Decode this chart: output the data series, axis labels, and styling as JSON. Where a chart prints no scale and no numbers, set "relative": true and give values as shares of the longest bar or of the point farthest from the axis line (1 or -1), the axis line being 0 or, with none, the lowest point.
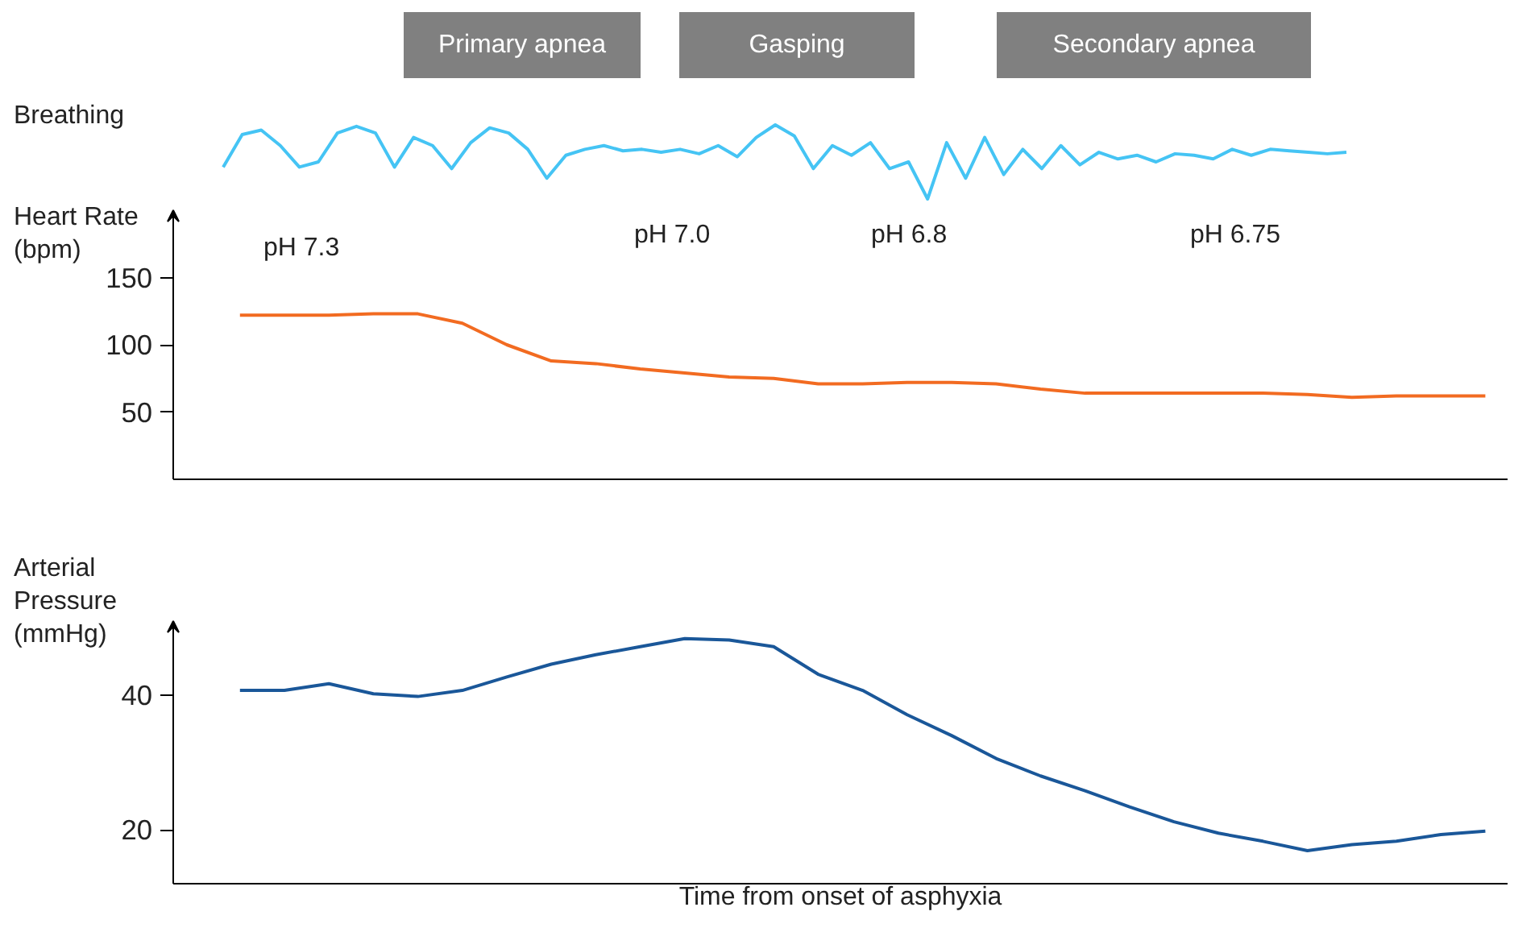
{
  "chart_data": [
    {
      "type": "line",
      "relative": true,
      "ylabel": "Breathing",
      "tick_labels": false,
      "annotations": [
        "Primary apnea",
        "Gasping",
        "Secondary apnea"
      ],
      "categories": [
        null,
        null,
        null,
        null,
        null,
        null,
        null,
        null,
        null,
        null,
        null,
        null,
        null,
        null,
        null,
        null,
        null,
        null,
        null,
        null,
        null,
        null,
        null,
        null,
        null,
        null,
        null,
        null,
        null,
        null,
        null,
        null,
        null,
        null,
        null,
        null,
        null,
        null,
        null,
        null,
        null,
        null,
        null,
        null,
        null,
        null,
        null,
        null,
        null,
        null,
        null,
        null,
        null,
        null,
        null,
        null,
        null,
        null,
        null,
        null
      ],
      "series": [
        {
          "color": "#45c4f4",
          "values": [
            0.43,
            0.87,
            0.93,
            0.72,
            0.43,
            0.5,
            0.89,
            0.98,
            0.89,
            0.43,
            0.83,
            0.72,
            0.41,
            0.76,
            0.96,
            0.89,
            0.67,
            0.28,
            0.59,
            0.67,
            0.72,
            0.65,
            0.67,
            0.63,
            0.67,
            0.61,
            0.72,
            0.57,
            0.83,
            1.0,
            0.85,
            0.41,
            0.72,
            0.59,
            0.76,
            0.41,
            0.5,
            0,
            0.76,
            0.28,
            0.83,
            0.33,
            0.67,
            0.41,
            0.72,
            0.46,
            0.63,
            0.54,
            0.59,
            0.5,
            0.61,
            0.59,
            0.54,
            0.67,
            0.59,
            0.67,
            0.65,
            0.63,
            0.61,
            0.63
          ]
        }
      ]
    },
    {
      "type": "line",
      "ylabel": "Heart Rate\n(bpm)",
      "tick_labels": "y",
      "annotations": [
        "pH 7.3",
        "pH  7.0",
        "pH 6.8",
        "pH 6.75"
      ],
      "ylim": [
        0,
        200
      ],
      "yticks": [
        50,
        100,
        150
      ],
      "categories": [
        null,
        null,
        null,
        null,
        null,
        null,
        null,
        null,
        null,
        null,
        null,
        null,
        null,
        null,
        null,
        null,
        null,
        null,
        null,
        null,
        null,
        null,
        null,
        null,
        null,
        null,
        null,
        null,
        null,
        null
      ],
      "series": [
        {
          "color": "#f26b21",
          "values": [
            null,
            122,
            122,
            122,
            123,
            123,
            116,
            100,
            88,
            86,
            82,
            79,
            76,
            75,
            71,
            71,
            72,
            72,
            71,
            67,
            64,
            64,
            64,
            64,
            64,
            63,
            61,
            62,
            62,
            62
          ]
        }
      ]
    },
    {
      "type": "line",
      "ylabel": "Arterial\nPressure\n(mmHg)",
      "xlabel": "Time from onset of asphyxia",
      "tick_labels": "y",
      "ylim": [
        12,
        51
      ],
      "yticks": [
        20,
        40
      ],
      "categories": [
        null,
        null,
        null,
        null,
        null,
        null,
        null,
        null,
        null,
        null,
        null,
        null,
        null,
        null,
        null,
        null,
        null,
        null,
        null,
        null,
        null,
        null,
        null,
        null,
        null,
        null,
        null,
        null,
        null,
        null
      ],
      "series": [
        {
          "color": "#1a5799",
          "values": [
            null,
            40.7,
            40.7,
            41.7,
            40.2,
            39.8,
            40.7,
            42.7,
            44.6,
            46,
            47.2,
            48.4,
            48.2,
            47.2,
            43.1,
            40.7,
            37.1,
            34,
            30.6,
            28,
            25.8,
            23.4,
            21.2,
            19.5,
            18.3,
            16.9,
            17.8,
            18.3,
            19.3,
            19.8
          ]
        }
      ]
    }
  ]
}
